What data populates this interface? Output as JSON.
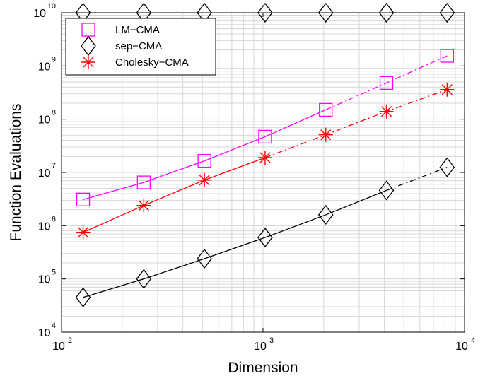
{
  "chart_data": {
    "type": "line",
    "xlabel": "Dimension",
    "ylabel": "Function Evaluations",
    "xscale": "log",
    "yscale": "log",
    "xlim": [
      100,
      10000
    ],
    "ylim": [
      10000,
      10000000000
    ],
    "grid": true,
    "legend_position": "top-left",
    "x_ticks": [
      {
        "base": "10",
        "exp": "2",
        "value": 100
      },
      {
        "base": "10",
        "exp": "3",
        "value": 1000
      },
      {
        "base": "10",
        "exp": "4",
        "value": 10000
      }
    ],
    "y_ticks": [
      {
        "base": "10",
        "exp": "4",
        "value": 10000
      },
      {
        "base": "10",
        "exp": "5",
        "value": 100000
      },
      {
        "base": "10",
        "exp": "6",
        "value": 1000000
      },
      {
        "base": "10",
        "exp": "7",
        "value": 10000000
      },
      {
        "base": "10",
        "exp": "8",
        "value": 100000000
      },
      {
        "base": "10",
        "exp": "9",
        "value": 1000000000
      },
      {
        "base": "10",
        "exp": "10",
        "value": 10000000000
      }
    ],
    "series": [
      {
        "name": "LM−CMA",
        "color": "#ff00ff",
        "marker": "square",
        "x": [
          128,
          256,
          512,
          1024,
          2048,
          4096,
          8192
        ],
        "y": [
          3100000,
          6500000,
          16500000,
          47000000,
          150000000,
          480000000,
          1550000000
        ],
        "solid_until_index": 4
      },
      {
        "name": "sep−CMA",
        "color": "#000000",
        "marker": "diamond",
        "x": [
          128,
          256,
          512,
          1024,
          2048,
          4096,
          8192
        ],
        "y": [
          45000,
          100000,
          240000,
          600000,
          1600000,
          4600000,
          12500000
        ],
        "solid_until_index": 5
      },
      {
        "name": "Cholesky−CMA",
        "color": "#ff0000",
        "marker": "asterisk",
        "x": [
          128,
          256,
          512,
          1024,
          2048,
          4096,
          8192
        ],
        "y": [
          750000,
          2400000,
          7200000,
          19000000,
          51000000,
          140000000,
          360000000
        ],
        "solid_until_index": 3
      }
    ],
    "extra_markers": {
      "marker": "diamond",
      "color": "#000000",
      "y": 10000000000,
      "x": [
        128,
        256,
        512,
        1024,
        2048,
        4096,
        8192
      ]
    }
  }
}
